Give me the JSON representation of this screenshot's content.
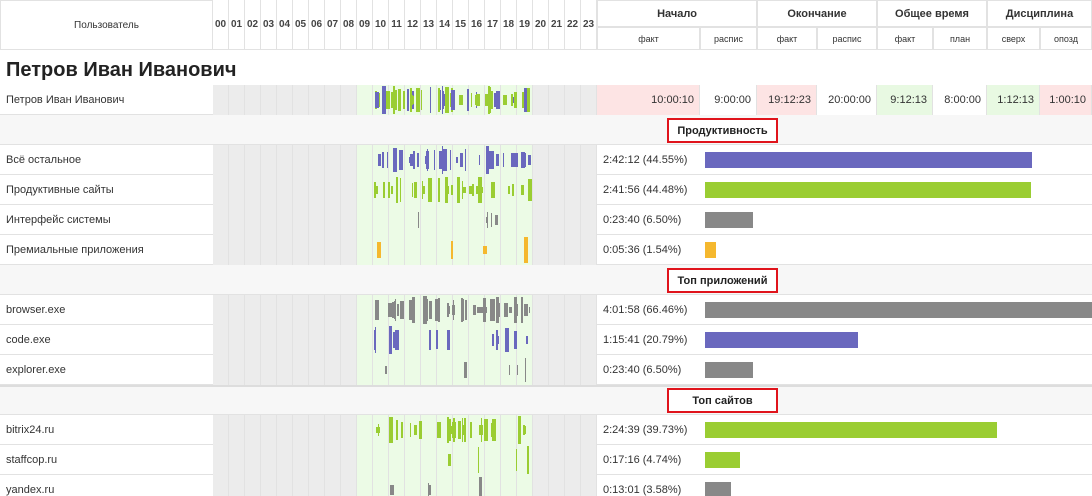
{
  "header": {
    "user_col": "Пользователь",
    "hours": [
      "00",
      "01",
      "02",
      "03",
      "04",
      "05",
      "06",
      "07",
      "08",
      "09",
      "10",
      "11",
      "12",
      "13",
      "14",
      "15",
      "16",
      "17",
      "18",
      "19",
      "20",
      "21",
      "22",
      "23"
    ],
    "groups": [
      {
        "label": "Начало",
        "sub": [
          "факт",
          "распис"
        ]
      },
      {
        "label": "Окончание",
        "sub": [
          "факт",
          "распис"
        ]
      },
      {
        "label": "Общее время",
        "sub": [
          "факт",
          "план"
        ]
      },
      {
        "label": "Дисциплина",
        "sub": [
          "сверх",
          "опозд"
        ]
      }
    ]
  },
  "user_title": "Петров Иван Иванович",
  "user_row": {
    "name": "Петров Иван Иванович",
    "cells": [
      "10:00:10",
      "9:00:00",
      "19:12:23",
      "20:00:00",
      "9:12:13",
      "8:00:00",
      "1:12:13",
      "1:00:10"
    ]
  },
  "sections": [
    {
      "title": "Продуктивность",
      "rows": [
        {
          "name": "Всё остальное",
          "value": 44.55,
          "value_label": "2:42:12 (44.55%)",
          "color": "#6a68be"
        },
        {
          "name": "Продуктивные сайты",
          "value": 44.48,
          "value_label": "2:41:56 (44.48%)",
          "color": "#9acd32"
        },
        {
          "name": "Интерфейс системы",
          "value": 6.5,
          "value_label": "0:23:40 (6.50%)",
          "color": "#888888"
        },
        {
          "name": "Премиальные приложения",
          "value": 1.54,
          "value_label": "0:05:36 (1.54%)",
          "color": "#f5b82e"
        }
      ]
    },
    {
      "title": "Топ приложений",
      "rows": [
        {
          "name": "browser.exe",
          "value": 66.46,
          "value_label": "4:01:58 (66.46%)",
          "color": "#888888"
        },
        {
          "name": "code.exe",
          "value": 20.79,
          "value_label": "1:15:41 (20.79%)",
          "color": "#6a68be"
        },
        {
          "name": "explorer.exe",
          "value": 6.5,
          "value_label": "0:23:40 (6.50%)",
          "color": "#888888"
        }
      ]
    },
    {
      "title": "Топ сайтов",
      "rows": [
        {
          "name": "bitrix24.ru",
          "value": 39.73,
          "value_label": "2:24:39 (39.73%)",
          "color": "#9acd32"
        },
        {
          "name": "staffcop.ru",
          "value": 4.74,
          "value_label": "0:17:16 (4.74%)",
          "color": "#9acd32"
        },
        {
          "name": "yandex.ru",
          "value": 3.58,
          "value_label": "0:13:01 (3.58%)",
          "color": "#888888"
        }
      ]
    }
  ]
}
